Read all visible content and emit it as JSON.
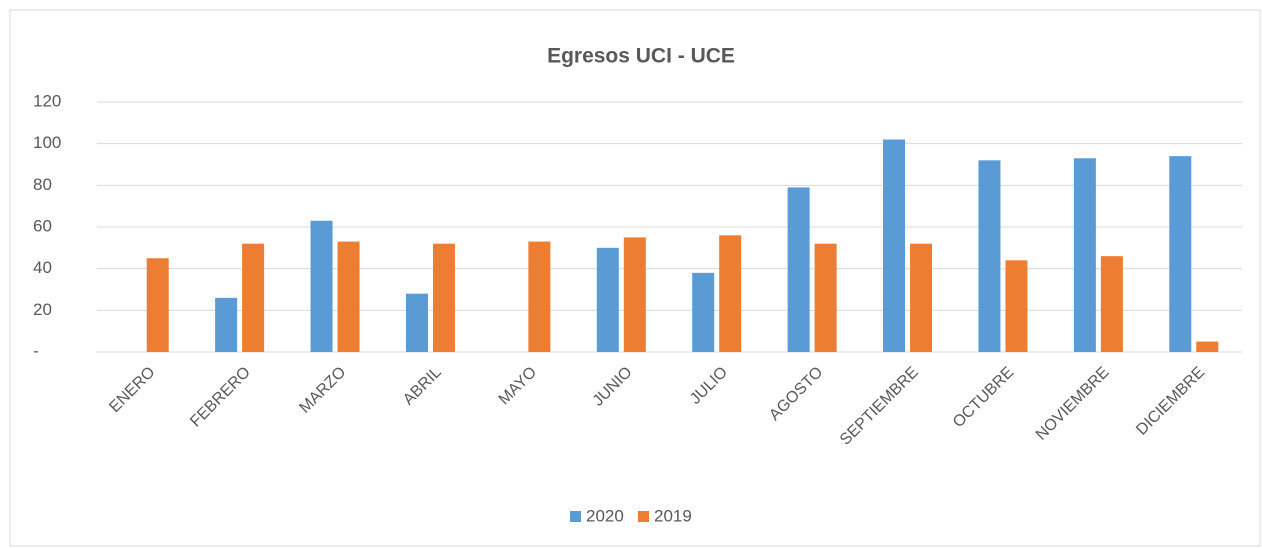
{
  "chart_data": {
    "type": "bar",
    "title": "Egresos UCI - UCE",
    "categories": [
      "ENERO",
      "FEBRERO",
      "MARZO",
      "ABRIL",
      "MAYO",
      "JUNIO",
      "JULIO",
      "AGOSTO",
      "SEPTIEMBRE",
      "OCTUBRE",
      "NOVIEMBRE",
      "DICIEMBRE"
    ],
    "series": [
      {
        "name": "2020",
        "color": "#5b9bd5",
        "values": [
          null,
          26,
          63,
          28,
          null,
          50,
          38,
          79,
          102,
          92,
          93,
          94
        ]
      },
      {
        "name": "2019",
        "color": "#ed7d31",
        "values": [
          45,
          52,
          53,
          52,
          53,
          55,
          56,
          52,
          52,
          44,
          46,
          5
        ]
      }
    ],
    "ylim": [
      0,
      120
    ],
    "yticks": [
      {
        "value": 0,
        "label": "-"
      },
      20,
      40,
      60,
      80,
      100,
      120
    ],
    "grid": true,
    "legend": "bottom"
  }
}
